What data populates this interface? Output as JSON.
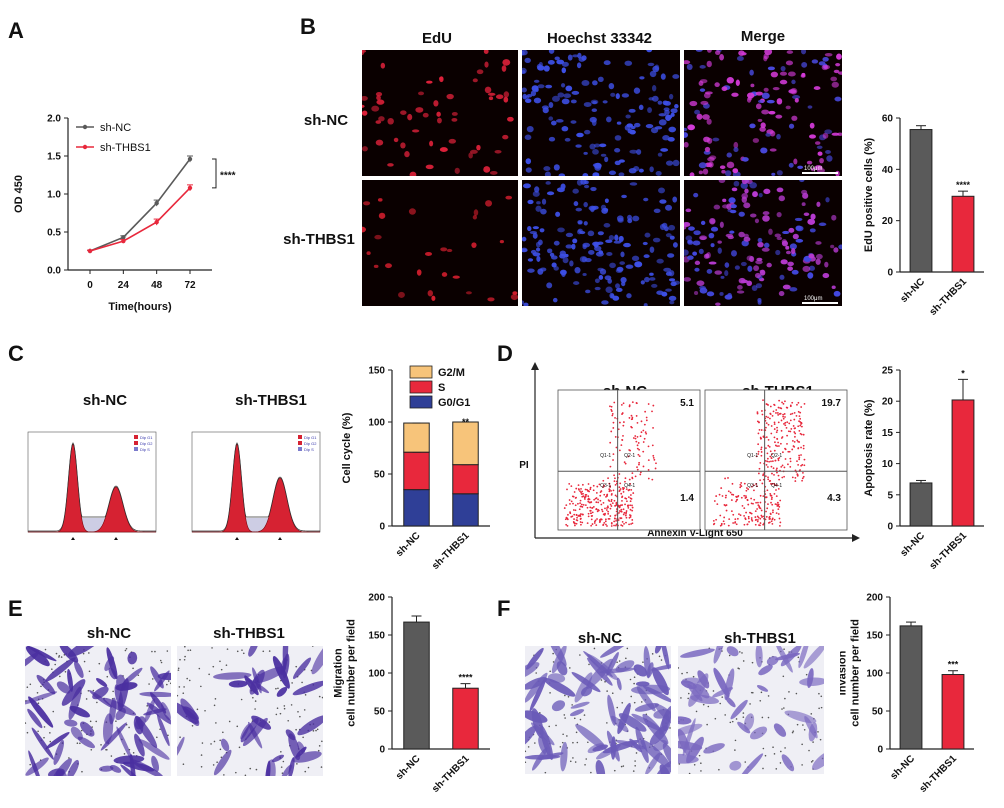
{
  "panels": {
    "A": "A",
    "B": "B",
    "C": "C",
    "D": "D",
    "E": "E",
    "F": "F"
  },
  "colors": {
    "nc": "#5a5a5a",
    "thbs1": "#e8283c",
    "g2m": "#f7c47a",
    "s": "#e8283c",
    "g0g1": "#2f3f97"
  },
  "panelB": {
    "col_titles": [
      "EdU",
      "Hoechst 33342",
      "Merge"
    ],
    "row_labels": [
      "sh-NC",
      "sh-THBS1"
    ],
    "scale_bar": "100μm"
  },
  "panelC": {
    "titles": [
      "sh-NC",
      "sh-THBS1"
    ],
    "legend_small": [
      "Dip G1",
      "Dip G2",
      "Dip S"
    ]
  },
  "panelD": {
    "titles": [
      "sh-NC",
      "sh-THBS1"
    ],
    "y_axis": "PI",
    "x_axis": "Annexin V-Light 650",
    "quadrants": [
      "Q1-1",
      "Q2-1",
      "Q3-1",
      "Q4-1"
    ],
    "nc_values": [
      "5.1",
      "1.4"
    ],
    "thbs1_values": [
      "19.7",
      "4.3"
    ]
  },
  "panelE": {
    "titles": [
      "sh-NC",
      "sh-THBS1"
    ]
  },
  "panelF": {
    "titles": [
      "sh-NC",
      "sh-THBS1"
    ]
  },
  "chart_data": [
    {
      "id": "A",
      "type": "line",
      "x": [
        0,
        24,
        48,
        72
      ],
      "series": [
        {
          "name": "sh-NC",
          "values": [
            0.25,
            0.43,
            0.88,
            1.46
          ],
          "errors": [
            0.01,
            0.02,
            0.04,
            0.04
          ]
        },
        {
          "name": "sh-THBS1",
          "values": [
            0.25,
            0.38,
            0.63,
            1.08
          ],
          "errors": [
            0.01,
            0.02,
            0.04,
            0.04
          ]
        }
      ],
      "xlabel": "Time(hours)",
      "ylabel": "OD 450",
      "yticks": [
        "0.0",
        "0.5",
        "1.0",
        "1.5",
        "2.0"
      ],
      "ylim": [
        0,
        2.0
      ],
      "xticks": [
        "0",
        "24",
        "48",
        "72"
      ],
      "annotation": "****",
      "legend": "top-left"
    },
    {
      "id": "B",
      "type": "bar",
      "categories": [
        "sh-NC",
        "sh-THBS1"
      ],
      "values": [
        55.5,
        29.5
      ],
      "errors": [
        1.5,
        2.0
      ],
      "ylabel": "EdU positive cells (%)",
      "ylim": [
        0,
        60
      ],
      "yticks": [
        "0",
        "20",
        "40",
        "60"
      ],
      "annotations": [
        "",
        "****"
      ]
    },
    {
      "id": "C",
      "type": "bar",
      "categories": [
        "sh-NC",
        "sh-THBS1"
      ],
      "series": [
        {
          "name": "G0/G1",
          "values": [
            35,
            31
          ]
        },
        {
          "name": "S",
          "values": [
            36,
            28
          ]
        },
        {
          "name": "G2/M",
          "values": [
            28,
            41
          ]
        }
      ],
      "stacked": true,
      "ylabel": "Cell cycle (%)",
      "ylim": [
        0,
        150
      ],
      "yticks": [
        "0",
        "50",
        "100",
        "150"
      ],
      "annotations": [
        "",
        "**"
      ]
    },
    {
      "id": "D",
      "type": "bar",
      "categories": [
        "sh-NC",
        "sh-THBS1"
      ],
      "values": [
        6.9,
        20.2
      ],
      "errors": [
        0.4,
        3.3
      ],
      "ylabel": "Apoptosis rate (%)",
      "ylim": [
        0,
        25
      ],
      "yticks": [
        "0",
        "5",
        "10",
        "15",
        "20",
        "25"
      ],
      "annotations": [
        "",
        "*"
      ]
    },
    {
      "id": "E",
      "type": "bar",
      "categories": [
        "sh-NC",
        "sh-THBS1"
      ],
      "values": [
        167,
        80
      ],
      "errors": [
        8,
        6
      ],
      "ylabel": "Migration\ncell number per field",
      "ylim": [
        0,
        200
      ],
      "yticks": [
        "0",
        "50",
        "100",
        "150",
        "200"
      ],
      "annotations": [
        "",
        "****"
      ]
    },
    {
      "id": "F",
      "type": "bar",
      "categories": [
        "sh-NC",
        "sh-THBS1"
      ],
      "values": [
        162,
        98
      ],
      "errors": [
        5,
        5
      ],
      "ylabel": "Invasion\ncell number per field",
      "ylim": [
        0,
        200
      ],
      "yticks": [
        "0",
        "50",
        "100",
        "150",
        "200"
      ],
      "annotations": [
        "",
        "***"
      ]
    }
  ]
}
